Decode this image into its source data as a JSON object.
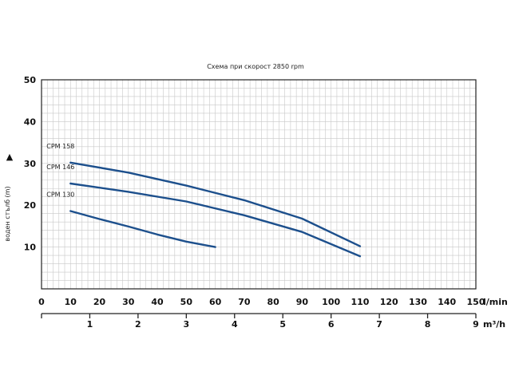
{
  "chart_data": {
    "type": "line",
    "title": "Схема при скорост 2850 rpm",
    "ylabel": "воден стълб (m)",
    "y_arrow": "▲",
    "xlabel": "l/min",
    "x2label": "m³/h",
    "xlim": [
      0,
      150
    ],
    "ylim": [
      0,
      50
    ],
    "x2lim": [
      0,
      9
    ],
    "x_ticks": [
      0,
      10,
      20,
      30,
      40,
      50,
      60,
      70,
      80,
      90,
      100,
      110,
      120,
      130,
      140,
      150
    ],
    "y_ticks": [
      10,
      20,
      30,
      40,
      50
    ],
    "x2_ticks": [
      1,
      2,
      3,
      4,
      5,
      6,
      7,
      8,
      9
    ],
    "grid": true,
    "colors": {
      "series": "#1c4f8c",
      "grid": "#c8c8c8",
      "frame": "#222222"
    },
    "series": [
      {
        "name": "CPM 158",
        "x": [
          10,
          30,
          50,
          70,
          90,
          110
        ],
        "y": [
          30.2,
          27.8,
          24.7,
          21.2,
          16.8,
          10.2
        ]
      },
      {
        "name": "CPM 146",
        "x": [
          10,
          30,
          50,
          70,
          90,
          110
        ],
        "y": [
          25.2,
          23.2,
          20.9,
          17.6,
          13.6,
          7.8
        ]
      },
      {
        "name": "CPM 130",
        "x": [
          10,
          20,
          30,
          40,
          50,
          60
        ],
        "y": [
          18.6,
          16.7,
          14.9,
          13.0,
          11.3,
          10.0
        ]
      }
    ]
  }
}
